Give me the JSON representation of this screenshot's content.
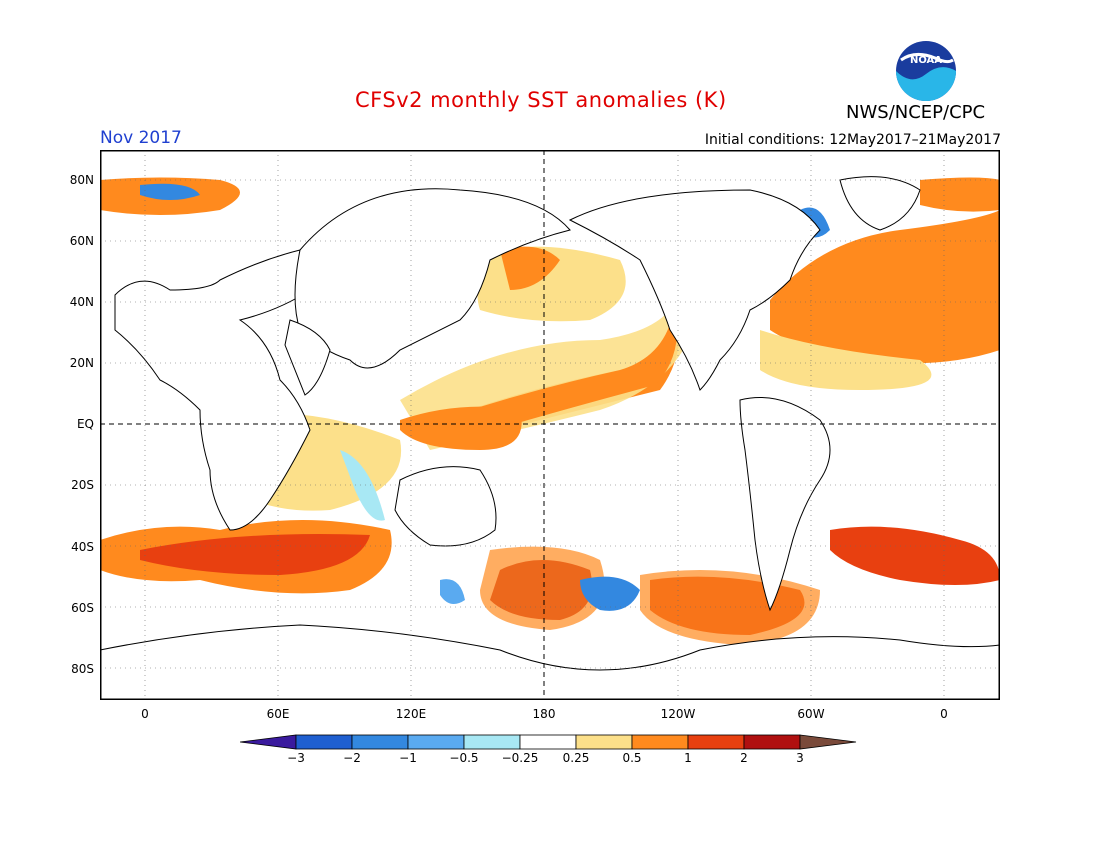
{
  "header": {
    "title": "CFSv2 monthly SST anomalies (K)",
    "agency": "NWS/NCEP/CPC",
    "month_label": "Nov 2017",
    "initial_conditions": "Initial conditions: 12May2017–21May2017",
    "logo_text": "NOAA"
  },
  "map": {
    "lat_labels": [
      "80N",
      "60N",
      "40N",
      "20N",
      "EQ",
      "20S",
      "40S",
      "60S",
      "80S"
    ],
    "lon_labels": [
      "0",
      "60E",
      "120E",
      "180",
      "120W",
      "60W",
      "0"
    ]
  },
  "colorbar": {
    "labels": [
      "-3",
      "-2",
      "-1",
      "-0.5",
      "-0.25",
      "0.25",
      "0.5",
      "1",
      "2",
      "3"
    ],
    "colors": [
      "#3a1a9e",
      "#1f5fd0",
      "#3388e0",
      "#5aaaf0",
      "#a8e8f4",
      "#ffffff",
      "#fce08a",
      "#ff8a1e",
      "#e84010",
      "#b01010",
      "#7a4a3a"
    ]
  },
  "anomaly_colors": {
    "deep_red": "#c01818",
    "red": "#e84010",
    "orange": "#ff8a1e",
    "light_orange": "#fce08a",
    "light_blue": "#a8e8f4",
    "blue": "#3388e0",
    "brown": "#6e5a50"
  }
}
